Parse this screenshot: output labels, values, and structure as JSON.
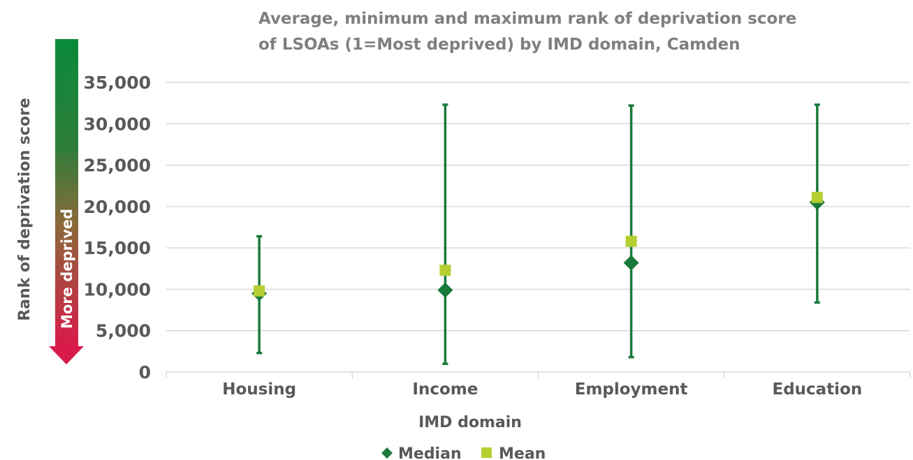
{
  "chart_data": {
    "type": "scatter",
    "title_lines": [
      "Average, minimum and maximum rank of deprivation score",
      "of LSOAs (1=Most deprived) by IMD domain, Camden"
    ],
    "xlabel": "IMD domain",
    "ylabel": "Rank of deprivation score",
    "arrow_label": "More deprived",
    "categories": [
      "Housing",
      "Income",
      "Employment",
      "Education"
    ],
    "ylim": [
      0,
      35000
    ],
    "y_ticks": [
      {
        "value": 0,
        "label": "0"
      },
      {
        "value": 5000,
        "label": "5,000"
      },
      {
        "value": 10000,
        "label": "10,000"
      },
      {
        "value": 15000,
        "label": "15,000"
      },
      {
        "value": 20000,
        "label": "20,000"
      },
      {
        "value": 25000,
        "label": "25,000"
      },
      {
        "value": 30000,
        "label": "30,000"
      },
      {
        "value": 35000,
        "label": "35,000"
      }
    ],
    "series": [
      {
        "name": "Median",
        "marker": "diamond",
        "color": "#1a7a3c",
        "values": [
          9500,
          9900,
          13200,
          20500
        ]
      },
      {
        "name": "Mean",
        "marker": "square",
        "color": "#b5cf32",
        "values": [
          9800,
          12300,
          15800,
          21100
        ]
      }
    ],
    "ranges": {
      "min": [
        2300,
        1000,
        1800,
        8400
      ],
      "max": [
        16400,
        32300,
        32200,
        32300
      ],
      "color": "#1a7a3c"
    },
    "grid": true,
    "legend_position": "bottom",
    "colors": {
      "gridline": "#d9d9d9",
      "arrow_top": "#0a8a3a",
      "arrow_bottom": "#d81b4a"
    }
  }
}
